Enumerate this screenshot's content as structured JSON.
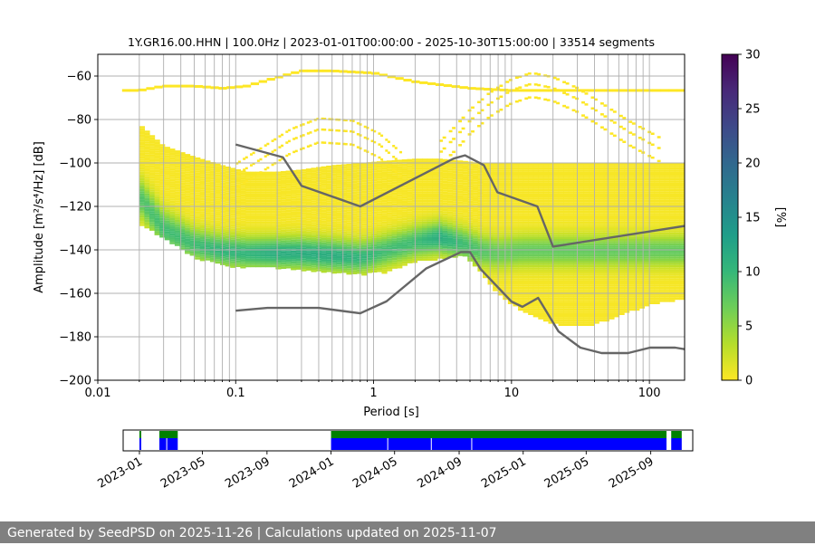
{
  "title": "1Y.GR16.00.HHN | 100.0Hz | 2023-01-01T00:00:00 - 2025-10-30T15:00:00 | 33514 segments",
  "footer": "Generated by SeedPSD on 2025-11-26 | Calculations updated on 2025-11-07",
  "chart_data": [
    {
      "type": "heatmap",
      "title": "1Y.GR16.00.HHN | 100.0Hz | 2023-01-01T00:00:00 - 2025-10-30T15:00:00 | 33514 segments",
      "xlabel": "Period [s]",
      "ylabel": "Amplitude [m²/s⁴/Hz] [dB]",
      "xscale": "log",
      "xlim": [
        0.01,
        180
      ],
      "ylim": [
        -200,
        -50
      ],
      "x_ticks": [
        {
          "value": 0.01,
          "label": "0.01"
        },
        {
          "value": 0.1,
          "label": "0.1"
        },
        {
          "value": 1,
          "label": "1"
        },
        {
          "value": 10,
          "label": "10"
        },
        {
          "value": 100,
          "label": "100"
        }
      ],
      "y_ticks": [
        -200,
        -180,
        -160,
        -140,
        -120,
        -100,
        -80,
        -60
      ],
      "grid": "vertical at log-minor periods, horizontal at y ticks",
      "colorbar": {
        "label": "[%]",
        "range": [
          0,
          30
        ],
        "ticks": [
          0,
          5,
          10,
          15,
          20,
          25,
          30
        ],
        "colormap": [
          "#fde725",
          "#b5de2b",
          "#6ece58",
          "#35b779",
          "#1f9e89",
          "#26828e",
          "#31688e",
          "#3e4989",
          "#482878",
          "#440154"
        ]
      },
      "psd_envelope": {
        "period": [
          0.02,
          0.03,
          0.05,
          0.08,
          0.12,
          0.2,
          0.3,
          0.5,
          0.8,
          1.2,
          2,
          3,
          4.5,
          6,
          8,
          12,
          18,
          25,
          40,
          60,
          100,
          180
        ],
        "upper": [
          -82,
          -92,
          -97,
          -101,
          -104,
          -104,
          -103,
          -101,
          -100,
          -99,
          -98,
          -98,
          -99,
          -100,
          -100,
          -100,
          -100,
          -100,
          -100,
          -100,
          -100,
          -100
        ],
        "lower": [
          -128,
          -134,
          -143,
          -147,
          -148,
          -148,
          -149,
          -150,
          -151,
          -150,
          -145,
          -144,
          -142,
          -150,
          -160,
          -168,
          -173,
          -175,
          -174,
          -170,
          -165,
          -162
        ],
        "mode": [
          -115,
          -130,
          -137,
          -140,
          -141,
          -141,
          -141,
          -142,
          -143,
          -140,
          -136,
          -134,
          -137,
          -140,
          -141,
          -140,
          -140,
          -140,
          -140,
          -140,
          -140,
          -140
        ],
        "spread_db": [
          6,
          6,
          5,
          5,
          5,
          5,
          5,
          5,
          5,
          5,
          5,
          5,
          5,
          5,
          5,
          5,
          5,
          5,
          5,
          5,
          5,
          5
        ],
        "peak_percent": [
          8,
          9,
          9,
          10,
          10,
          11,
          11,
          11,
          10,
          9,
          9,
          11,
          9,
          8,
          7,
          7,
          7,
          7,
          7,
          7,
          7,
          7
        ]
      },
      "sparse_features": {
        "top_band": {
          "period": [
            0.015,
            0.02,
            0.03,
            0.05,
            0.08,
            0.12,
            0.2,
            0.3,
            0.5,
            1,
            2,
            5,
            10,
            50,
            180
          ],
          "db": [
            -66,
            -66,
            -64,
            -64,
            -65,
            -64,
            -60,
            -57,
            -57,
            -58,
            -62,
            -65,
            -66,
            -66,
            -66
          ]
        },
        "upper_arcs": [
          {
            "period": [
              0.1,
              0.15,
              0.25,
              0.4,
              0.7,
              1.1,
              1.6
            ],
            "db": [
              -100,
              -93,
              -84,
              -79,
              -80,
              -86,
              -95
            ]
          },
          {
            "period": [
              3,
              4,
              5,
              7,
              10,
              14,
              20,
              30,
              45,
              70,
              120
            ],
            "db": [
              -90,
              -82,
              -75,
              -67,
              -61,
              -58,
              -60,
              -65,
              -72,
              -80,
              -88
            ]
          }
        ]
      },
      "model_curves": {
        "upper": {
          "period": [
            0.1,
            0.22,
            0.3,
            0.8,
            3.8,
            4.6,
            6.3,
            7.9,
            15.4,
            20,
            180
          ],
          "db": [
            -91.5,
            -97.4,
            -110.5,
            -120,
            -98,
            -96.5,
            -101,
            -113.5,
            -120,
            -138.5,
            -129
          ]
        },
        "lower": {
          "period": [
            0.1,
            0.17,
            0.4,
            0.8,
            1.24,
            2.4,
            4.3,
            5,
            6,
            10,
            12,
            15.6,
            21.9,
            31.6,
            45,
            70,
            101,
            154,
            180
          ],
          "db": [
            -168,
            -166.7,
            -166.7,
            -169.2,
            -163.7,
            -148.6,
            -141,
            -141,
            -149,
            -163.8,
            -166.2,
            -162.1,
            -177.5,
            -185,
            -187.5,
            -187.5,
            -185,
            -185,
            -185.7
          ]
        }
      }
    },
    {
      "type": "bar",
      "title": "",
      "x_ticks": [
        "2023-01",
        "2023-05",
        "2023-09",
        "2024-01",
        "2024-05",
        "2024-09",
        "2025-01",
        "2025-05",
        "2025-09"
      ],
      "xlim": [
        "2022-12-01",
        "2025-11-20"
      ],
      "legend": "",
      "series": [
        {
          "color": "#008000",
          "row": "top",
          "ranges": [
            [
              "2023-01-01",
              "2023-01-03"
            ],
            [
              "2023-02-08",
              "2023-03-15"
            ],
            [
              "2024-01-01",
              "2025-10-01"
            ],
            [
              "2025-10-10",
              "2025-10-30"
            ]
          ]
        },
        {
          "color": "#0000ff",
          "row": "bottom",
          "ranges": [
            [
              "2023-01-01",
              "2023-01-03"
            ],
            [
              "2023-02-08",
              "2023-03-15"
            ],
            [
              "2024-01-01",
              "2025-10-01"
            ],
            [
              "2025-10-10",
              "2025-10-30"
            ]
          ]
        }
      ],
      "gap_dates": [
        "2023-02-22",
        "2024-04-18",
        "2024-07-10",
        "2024-09-25"
      ]
    }
  ]
}
